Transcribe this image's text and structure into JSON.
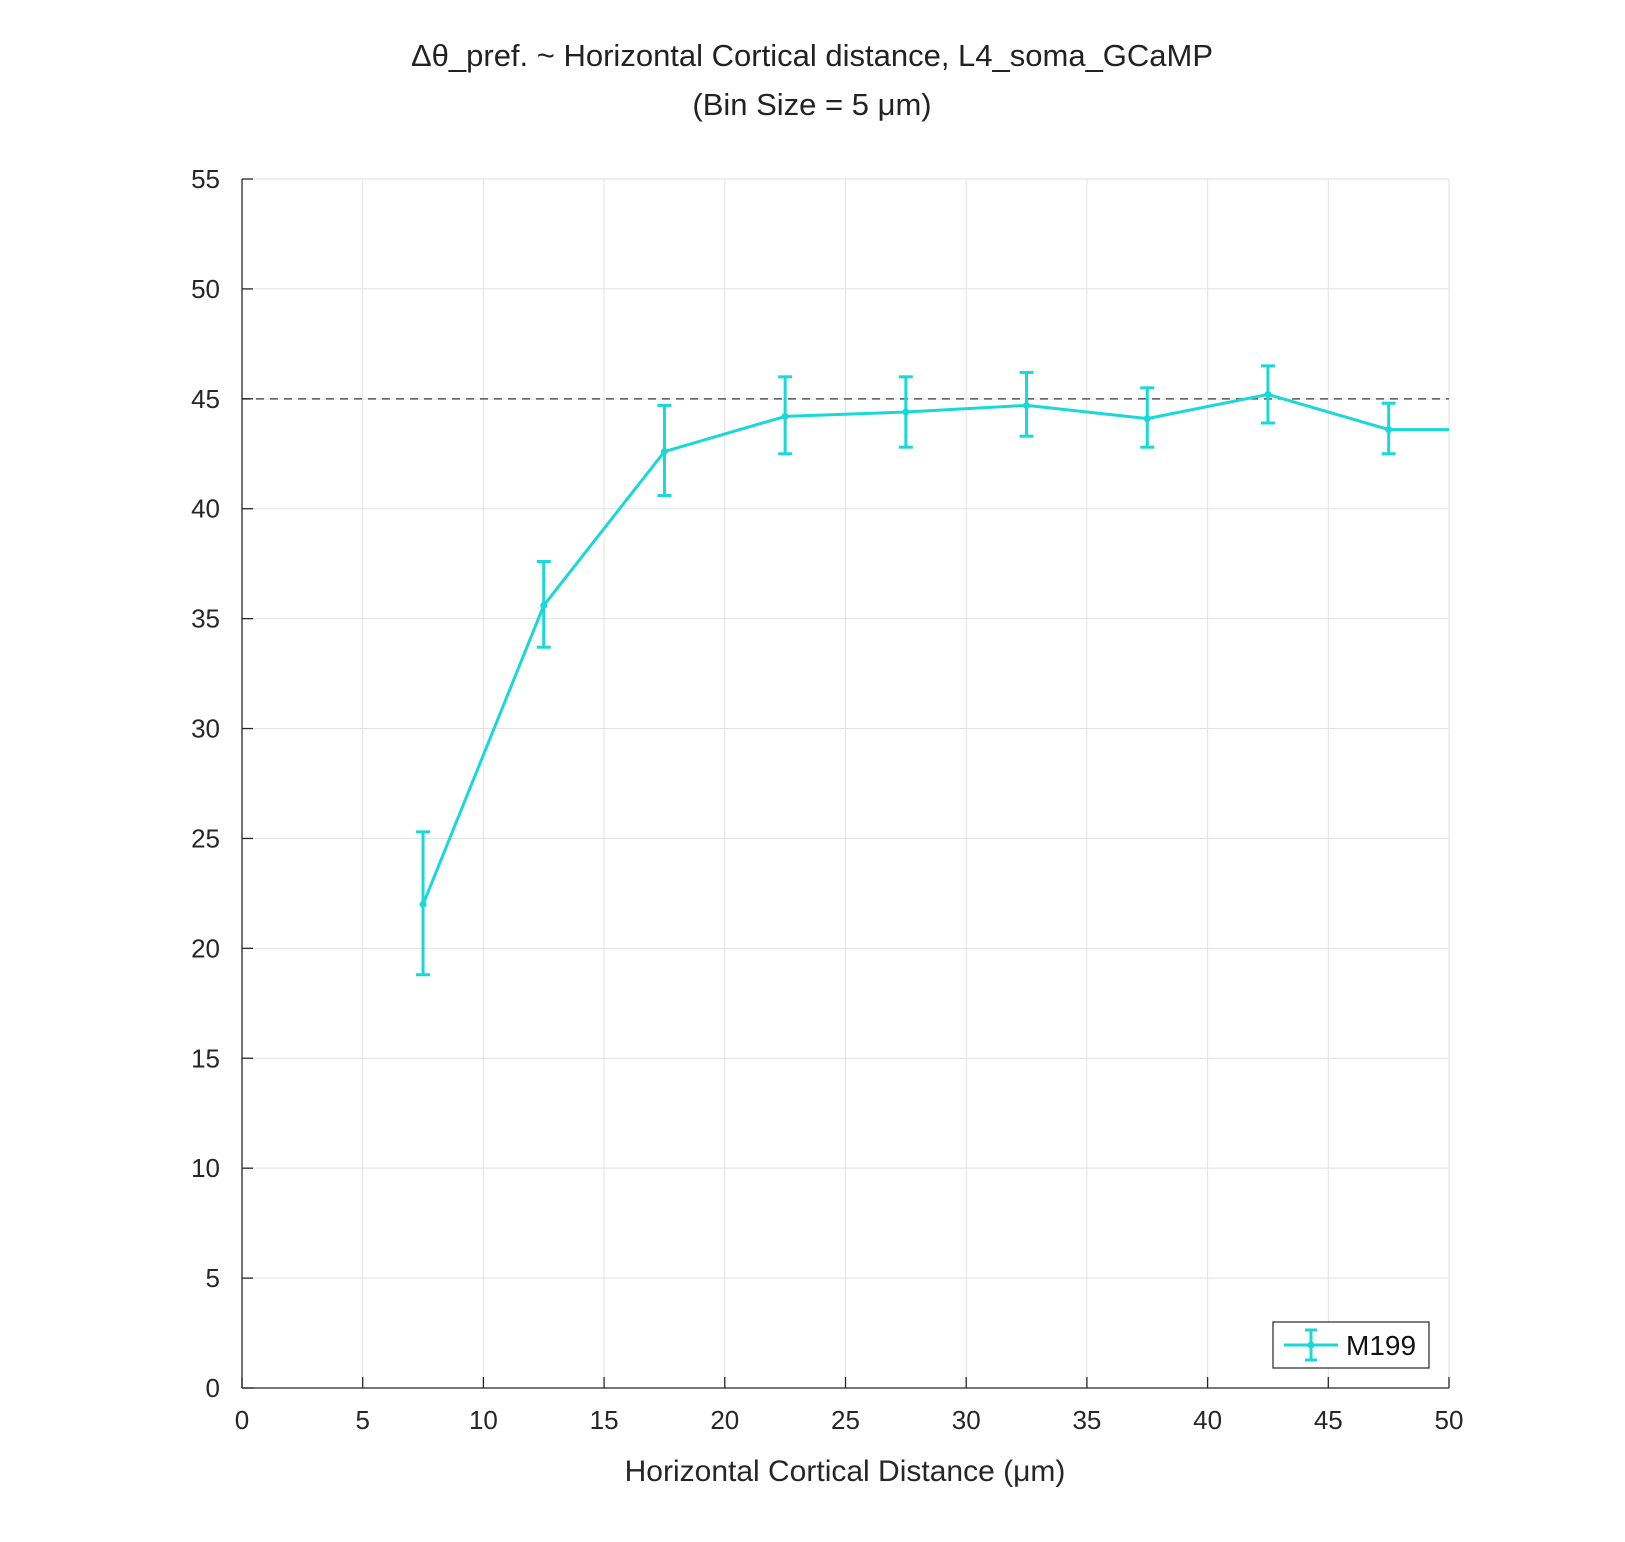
{
  "chart_data": {
    "type": "line",
    "title_line1": "Δθ_pref. ~ Horizontal Cortical distance, L4_soma_GCaMP",
    "title_line2": "(Bin Size = 5 μm)",
    "xlabel": "Horizontal Cortical Distance (μm)",
    "ylabel": "",
    "xlim": [
      0,
      50
    ],
    "ylim": [
      0,
      55
    ],
    "xticks": [
      0,
      5,
      10,
      15,
      20,
      25,
      30,
      35,
      40,
      45,
      50
    ],
    "yticks": [
      0,
      5,
      10,
      15,
      20,
      25,
      30,
      35,
      40,
      45,
      50,
      55
    ],
    "grid": true,
    "legend_position": "bottom-right",
    "reference_line": {
      "y": 45,
      "style": "dashed",
      "color": "#555555"
    },
    "series": [
      {
        "name": "M199",
        "color": "#1ad8d8",
        "x": [
          7.5,
          12.5,
          17.5,
          22.5,
          27.5,
          32.5,
          37.5,
          42.5,
          47.5,
          50
        ],
        "y": [
          22.0,
          35.6,
          42.6,
          44.2,
          44.4,
          44.7,
          44.1,
          45.2,
          43.6,
          43.6
        ],
        "err_low": [
          18.8,
          33.7,
          40.6,
          42.5,
          42.8,
          43.3,
          42.8,
          43.9,
          42.5,
          null
        ],
        "err_high": [
          25.3,
          37.6,
          44.7,
          46.0,
          46.0,
          46.2,
          45.5,
          46.5,
          44.8,
          null
        ]
      }
    ]
  }
}
